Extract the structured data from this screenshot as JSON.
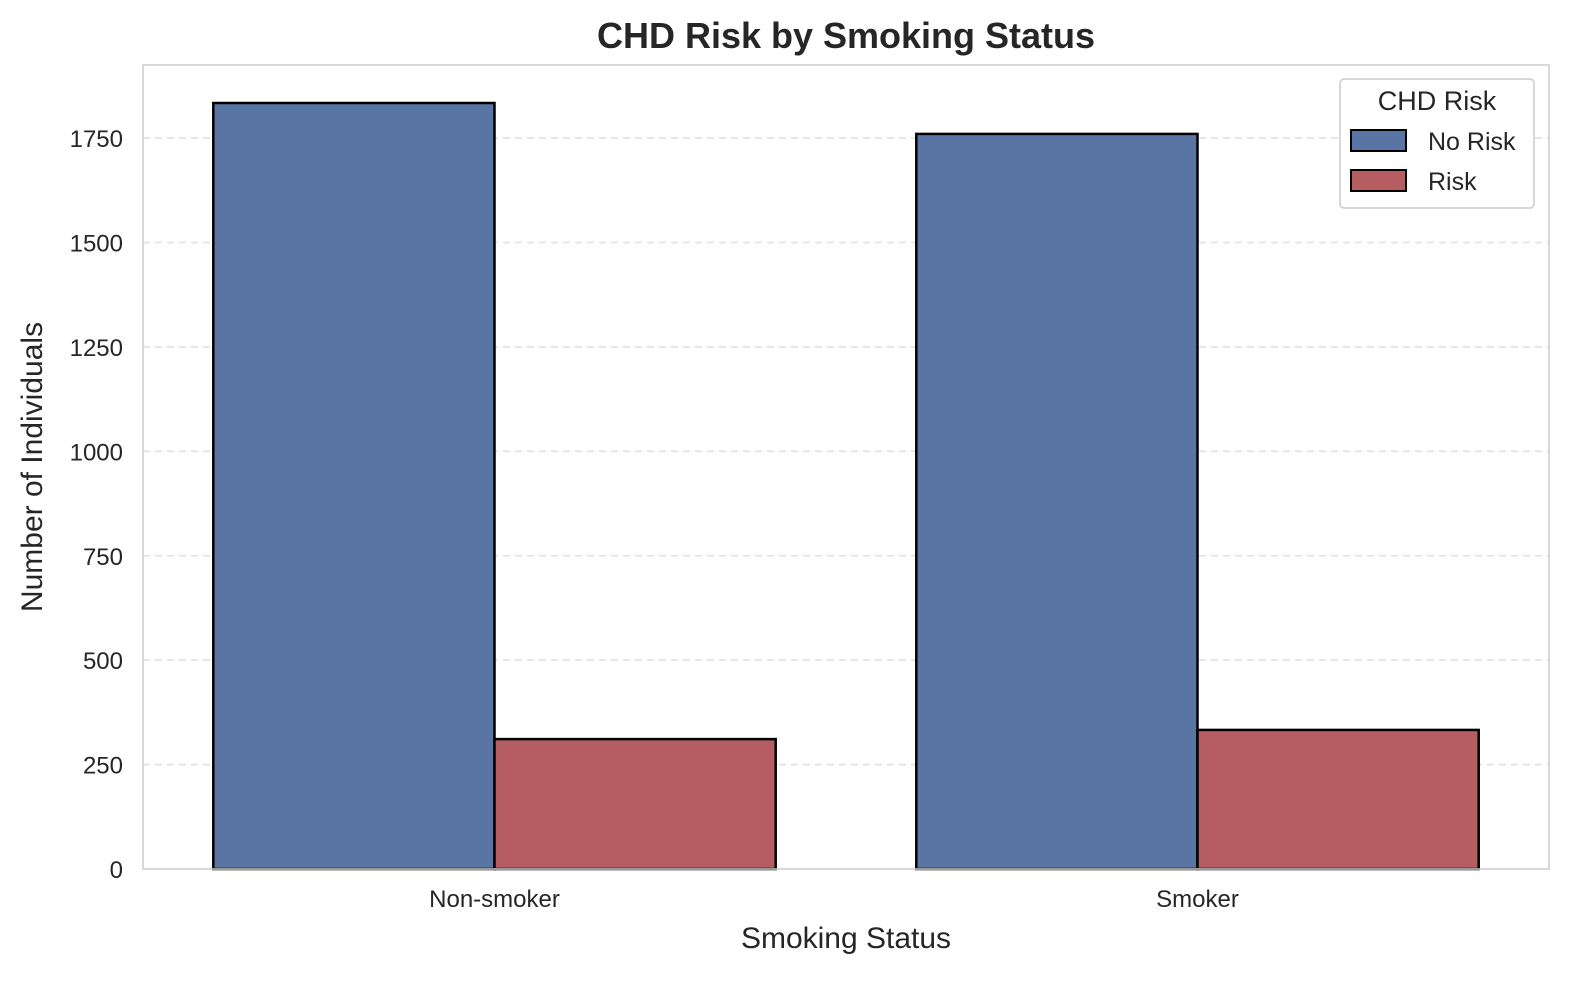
{
  "chart_data": {
    "type": "bar",
    "title": "CHD Risk by Smoking Status",
    "xlabel": "Smoking Status",
    "ylabel": "Number of Individuals",
    "categories": [
      "Non-smoker",
      "Smoker"
    ],
    "series": [
      {
        "name": "No Risk",
        "color": "#5975a4",
        "values": [
          1834,
          1760
        ]
      },
      {
        "name": "Risk",
        "color": "#b55d60",
        "values": [
          311,
          333
        ]
      }
    ],
    "ylim": [
      0,
      1925
    ],
    "yticks": [
      0,
      250,
      500,
      750,
      1000,
      1250,
      1500,
      1750
    ],
    "grid": "y, dashed",
    "legend": {
      "title": "CHD Risk",
      "placement": "top-right"
    }
  }
}
